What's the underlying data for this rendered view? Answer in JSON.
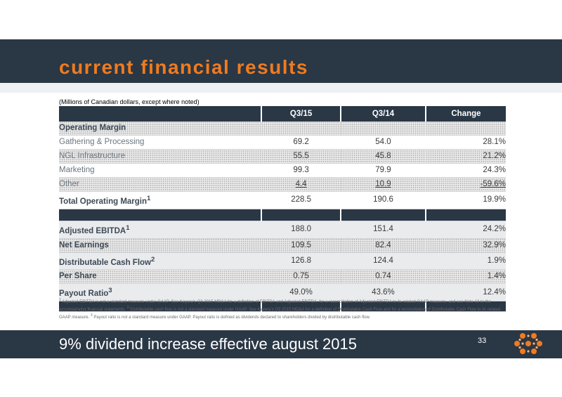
{
  "header": {
    "title": "current financial results"
  },
  "unit_note": "(Millions of Canadian dollars, except where noted)",
  "table": {
    "columns": [
      "",
      "Q3/15",
      "Q3/14",
      "Change"
    ],
    "rows": [
      {
        "label": "Operating Margin",
        "q315": "",
        "q314": "",
        "change": ""
      },
      {
        "label": "Gathering & Processing",
        "q315": "69.2",
        "q314": "54.0",
        "change": "28.1%"
      },
      {
        "label": "NGL Infrastructure",
        "q315": "55.5",
        "q314": "45.8",
        "change": "21.2%"
      },
      {
        "label": "Marketing",
        "q315": "99.3",
        "q314": "79.9",
        "change": "24.3%"
      },
      {
        "label": "Other",
        "q315": "4.4",
        "q314": "10.9",
        "change": "-59.6%"
      },
      {
        "label": "Total Operating Margin",
        "sup": "1",
        "q315": "228.5",
        "q314": "190.6",
        "change": "19.9%"
      },
      {
        "label": "Adjusted EBITDA",
        "sup": "1",
        "q315": "188.0",
        "q314": "151.4",
        "change": "24.2%"
      },
      {
        "label": "Net Earnings",
        "q315": "109.5",
        "q314": "82.4",
        "change": "32.9%"
      },
      {
        "label": "Distributable Cash Flow",
        "sup": "2",
        "q315": "126.8",
        "q314": "124.4",
        "change": "1.9%"
      },
      {
        "label": "Per Share",
        "q315": "0.75",
        "q314": "0.74",
        "change": "1.4%"
      },
      {
        "label": "Payout Ratio",
        "sup": "3",
        "q315": "49.0%",
        "q314": "43.6%",
        "change": "12.4%"
      }
    ]
  },
  "footnote": {
    "n1": "1",
    "t1": " Adjusted EBITDA is not a standard measure under GAAP. See Keyera's Q3 2015 MD&A for a definition of EBITDA and Adjusted EBITDA, for a reconciliation of Adjusted EBITDA to its related GAAP measure, and see Note 13 to the accompanying financial statements. ",
    "n2": "2",
    "t2": " Distributable cash flow is not a standard measure under GAAP. See Keyera's Q3 2015 MD&A for a definition of Distributable Cash Flow and for a reconciliation of Distributable Cash Flow to its related GAAP measure. ",
    "n3": "3",
    "t3": " Payout ratio is not a standard measure under GAAP. Payout ratio is defined as dividends declared to shareholders divided by distributable cash flow."
  },
  "footer": {
    "tagline": "9% dividend increase effective august 2015",
    "page_number": "33"
  },
  "colors": {
    "dark": "#2a3745",
    "accent": "#f07b1e"
  },
  "logo": {
    "icon": "keyera-dot-logo-icon"
  }
}
